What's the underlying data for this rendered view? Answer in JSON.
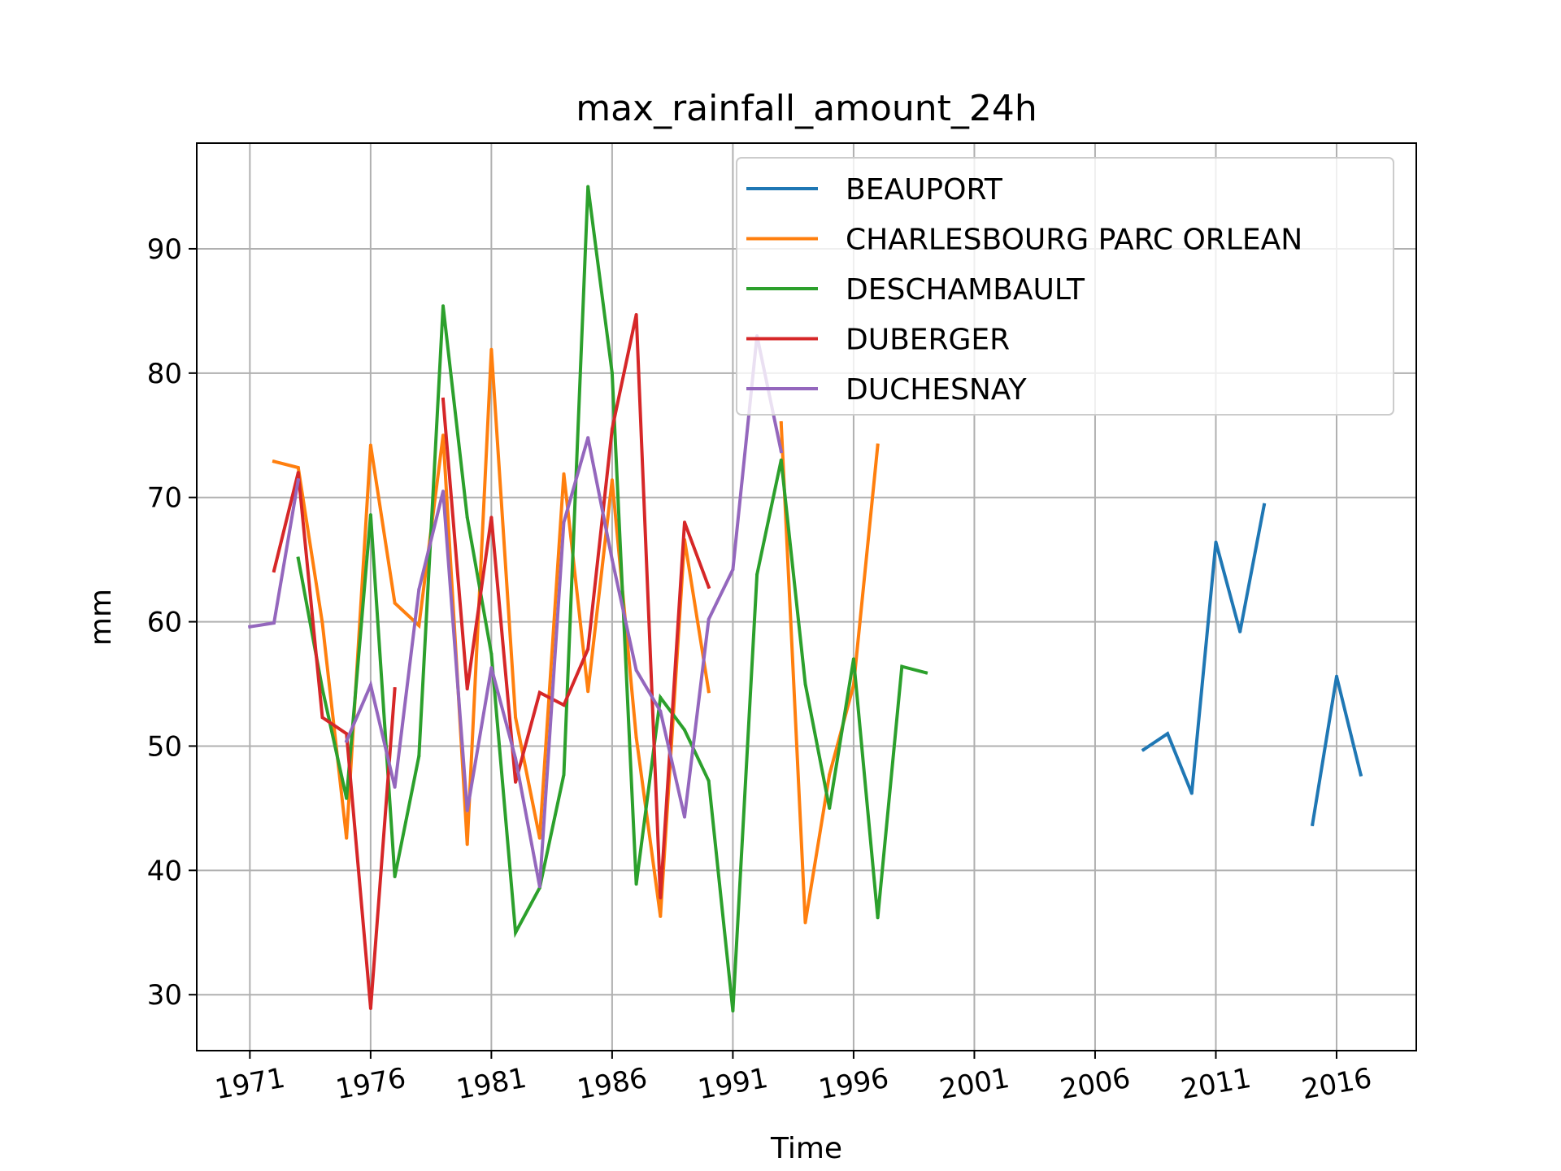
{
  "chart_data": {
    "type": "line",
    "title": "max_rainfall_amount_24h",
    "xlabel": "Time",
    "ylabel": "mm",
    "xlim": [
      1968.8,
      2019.3
    ],
    "ylim": [
      25.5,
      98.5
    ],
    "xticks": [
      1971,
      1976,
      1981,
      1986,
      1991,
      1996,
      2001,
      2006,
      2011,
      2016
    ],
    "yticks": [
      30,
      40,
      50,
      60,
      70,
      80,
      90
    ],
    "grid": true,
    "legend_position": "top-right",
    "series": [
      {
        "name": "BEAUPORT",
        "color": "#1f77b4",
        "points": [
          [
            2008,
            49.7
          ],
          [
            2009,
            51.0
          ],
          [
            2010,
            46.2
          ],
          [
            2011,
            66.4
          ],
          [
            2012,
            59.2
          ],
          [
            2013,
            69.4
          ],
          [
            2014,
            null
          ],
          [
            2015,
            43.7
          ],
          [
            2016,
            55.6
          ],
          [
            2017,
            47.7
          ]
        ]
      },
      {
        "name": "CHARLESBOURG PARC ORLEAN",
        "color": "#ff7f0e",
        "points": [
          [
            1972,
            72.9
          ],
          [
            1973,
            72.4
          ],
          [
            1974,
            59.9
          ],
          [
            1975,
            42.6
          ],
          [
            1976,
            74.2
          ],
          [
            1977,
            61.5
          ],
          [
            1978,
            59.7
          ],
          [
            1979,
            75.0
          ],
          [
            1980,
            42.1
          ],
          [
            1981,
            81.9
          ],
          [
            1982,
            52.3
          ],
          [
            1983,
            42.6
          ],
          [
            1984,
            71.9
          ],
          [
            1985,
            54.4
          ],
          [
            1986,
            71.4
          ],
          [
            1987,
            50.7
          ],
          [
            1988,
            36.3
          ],
          [
            1989,
            66.6
          ],
          [
            1990,
            54.4
          ],
          [
            1991,
            null
          ],
          [
            1992,
            null
          ],
          [
            1993,
            76.0
          ],
          [
            1994,
            35.8
          ],
          [
            1995,
            47.7
          ],
          [
            1996,
            54.9
          ],
          [
            1997,
            74.2
          ]
        ]
      },
      {
        "name": "DESCHAMBAULT",
        "color": "#2ca02c",
        "points": [
          [
            1973,
            65.1
          ],
          [
            1974,
            54.6
          ],
          [
            1975,
            45.8
          ],
          [
            1976,
            68.6
          ],
          [
            1977,
            39.5
          ],
          [
            1978,
            49.2
          ],
          [
            1979,
            85.4
          ],
          [
            1980,
            68.4
          ],
          [
            1981,
            57.4
          ],
          [
            1982,
            35.0
          ],
          [
            1983,
            38.6
          ],
          [
            1984,
            47.7
          ],
          [
            1985,
            95.0
          ],
          [
            1986,
            80.0
          ],
          [
            1987,
            38.9
          ],
          [
            1988,
            53.9
          ],
          [
            1989,
            51.3
          ],
          [
            1990,
            47.2
          ],
          [
            1991,
            28.7
          ],
          [
            1992,
            63.8
          ],
          [
            1993,
            73.0
          ],
          [
            1994,
            55.0
          ],
          [
            1995,
            45.0
          ],
          [
            1996,
            57.0
          ],
          [
            1997,
            36.2
          ],
          [
            1998,
            56.4
          ],
          [
            1999,
            55.9
          ]
        ]
      },
      {
        "name": "DUBERGER",
        "color": "#d62728",
        "points": [
          [
            1972,
            64.1
          ],
          [
            1973,
            72.0
          ],
          [
            1974,
            52.3
          ],
          [
            1975,
            51.0
          ],
          [
            1976,
            28.9
          ],
          [
            1977,
            54.6
          ],
          [
            1978,
            null
          ],
          [
            1979,
            77.9
          ],
          [
            1980,
            54.6
          ],
          [
            1981,
            68.4
          ],
          [
            1982,
            47.1
          ],
          [
            1983,
            54.3
          ],
          [
            1984,
            53.3
          ],
          [
            1985,
            57.8
          ],
          [
            1986,
            75.5
          ],
          [
            1987,
            84.7
          ],
          [
            1988,
            37.8
          ],
          [
            1989,
            68.0
          ],
          [
            1990,
            62.8
          ]
        ]
      },
      {
        "name": "DUCHESNAY",
        "color": "#9467bd",
        "points": [
          [
            1971,
            59.6
          ],
          [
            1972,
            59.9
          ],
          [
            1973,
            71.4
          ],
          [
            1974,
            null
          ],
          [
            1975,
            50.4
          ],
          [
            1976,
            54.9
          ],
          [
            1977,
            46.7
          ],
          [
            1978,
            62.6
          ],
          [
            1979,
            70.5
          ],
          [
            1980,
            44.8
          ],
          [
            1981,
            56.3
          ],
          [
            1982,
            49.0
          ],
          [
            1983,
            38.7
          ],
          [
            1984,
            68.0
          ],
          [
            1985,
            74.8
          ],
          [
            1986,
            65.0
          ],
          [
            1987,
            56.1
          ],
          [
            1988,
            52.8
          ],
          [
            1989,
            44.3
          ],
          [
            1990,
            60.2
          ],
          [
            1991,
            64.2
          ],
          [
            1992,
            83.0
          ],
          [
            1993,
            73.7
          ]
        ]
      }
    ]
  }
}
